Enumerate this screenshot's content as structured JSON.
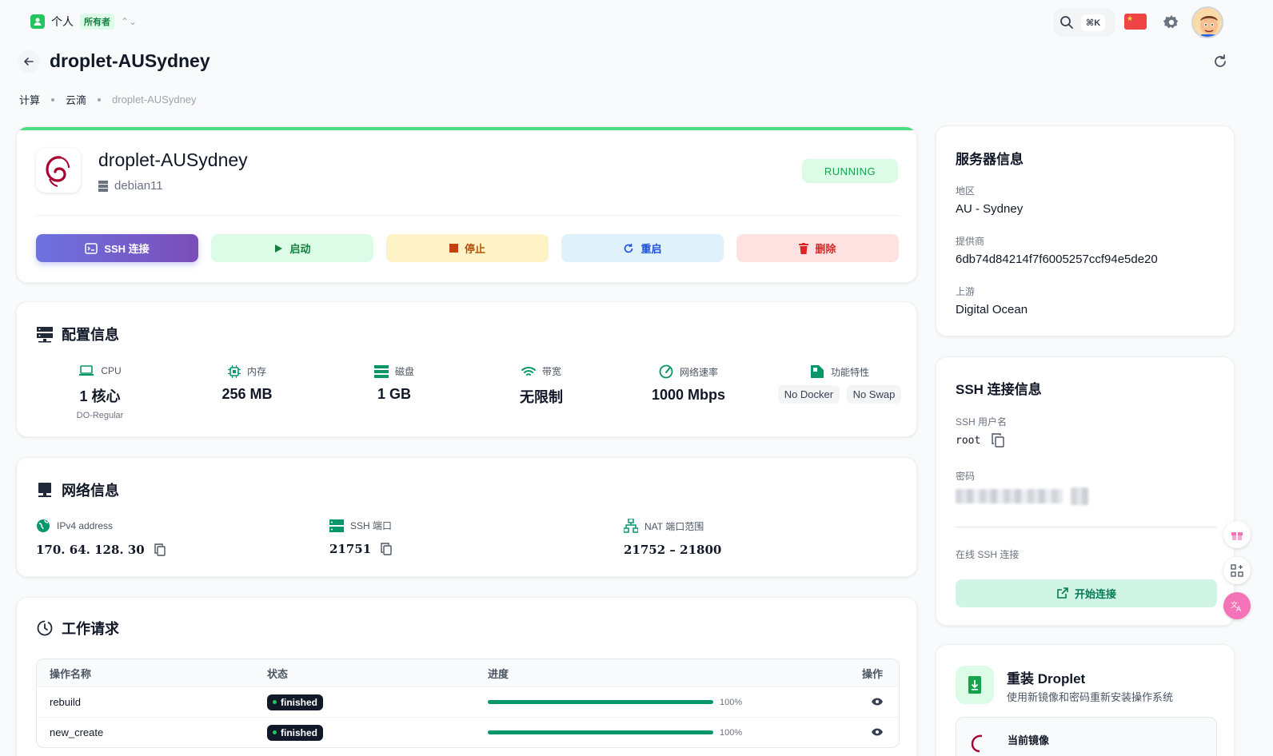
{
  "workspace": {
    "name": "个人",
    "badge": "所有者"
  },
  "topbar": {
    "shortcut": "⌘K",
    "language_flag": "cn-flag"
  },
  "page": {
    "title": "droplet-AUSydney"
  },
  "breadcrumb": [
    "计算",
    "云滴",
    "droplet-AUSydney"
  ],
  "droplet": {
    "name": "droplet-AUSydney",
    "image": "debian11",
    "status": "RUNNING",
    "colors": {
      "accent": "#4ade80",
      "status_bg": "#dcfce7",
      "status_fg": "#16a34a"
    }
  },
  "actions": {
    "ssh": "SSH 连接",
    "start": "启动",
    "stop": "停止",
    "reboot": "重启",
    "delete": "删除"
  },
  "config": {
    "title": "配置信息",
    "cpu": {
      "label": "CPU",
      "value": "1 核心",
      "sub": "DO-Regular"
    },
    "memory": {
      "label": "内存",
      "value": "256 MB"
    },
    "disk": {
      "label": "磁盘",
      "value": "1 GB"
    },
    "bandwidth": {
      "label": "带宽",
      "value": "无限制"
    },
    "speed": {
      "label": "网络速率",
      "value": "1000 Mbps"
    },
    "features": {
      "label": "功能特性",
      "tags": [
        "No Docker",
        "No Swap"
      ]
    }
  },
  "network": {
    "title": "网络信息",
    "ipv4": {
      "label": "IPv4 address",
      "value": "170. 64. 128. 30"
    },
    "ssh_port": {
      "label": "SSH 端口",
      "value": "21751"
    },
    "nat": {
      "label": "NAT 端口范围",
      "value": "21752 – 21800"
    }
  },
  "jobs": {
    "title": "工作请求",
    "columns": [
      "操作名称",
      "状态",
      "进度",
      "操作"
    ],
    "rows": [
      {
        "name": "rebuild",
        "status": "finished",
        "progress": 100,
        "progress_label": "100%"
      },
      {
        "name": "new_create",
        "status": "finished",
        "progress": 100,
        "progress_label": "100%"
      }
    ]
  },
  "server_info": {
    "title": "服务器信息",
    "region": {
      "label": "地区",
      "value": "AU - Sydney"
    },
    "provider": {
      "label": "提供商",
      "value": "6db74d84214f7f6005257ccf94e5de20"
    },
    "upstream": {
      "label": "上游",
      "value": "Digital Ocean"
    }
  },
  "ssh_info": {
    "title": "SSH 连接信息",
    "username_label": "SSH 用户名",
    "username": "root",
    "password_label": "密码",
    "online_label": "在线 SSH 连接",
    "connect_button": "开始连接"
  },
  "reinstall": {
    "title": "重装 Droplet",
    "desc": "使用新镜像和密码重新安装操作系统",
    "current_image_label": "当前镜像"
  }
}
